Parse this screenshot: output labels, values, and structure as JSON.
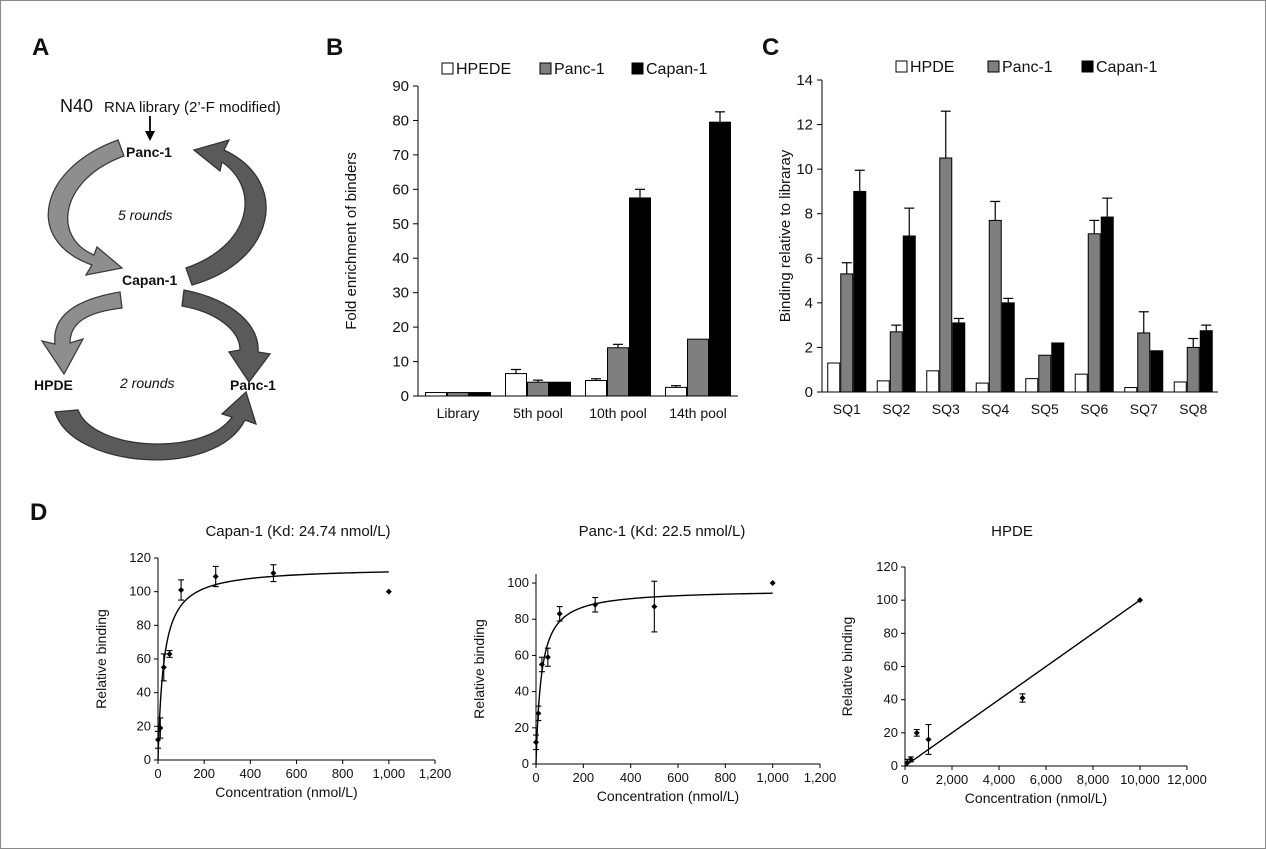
{
  "panels": {
    "a": {
      "letter": "A",
      "n40": "N40",
      "library_text": "RNA library (2’-F modified)",
      "top_cycle": {
        "top_cell": "Panc-1",
        "rounds": "5 rounds",
        "bottom_cell": "Capan-1"
      },
      "bottom_cycle": {
        "left_cell": "HPDE",
        "rounds": "2 rounds",
        "right_cell": "Panc-1"
      }
    },
    "b": {
      "letter": "B"
    },
    "c": {
      "letter": "C"
    },
    "d": {
      "letter": "D"
    }
  },
  "colors": {
    "white_bar": "#ffffff",
    "gray_bar": "#7f7f7f",
    "black_bar": "#000000",
    "arrow_dark": "#5a5a5a",
    "arrow_light": "#8e8e8e"
  },
  "chart_data": [
    {
      "id": "b",
      "type": "bar",
      "title": "",
      "ylabel": "Fold enrichment of binders",
      "xlabel": "",
      "ylim": [
        0,
        90
      ],
      "yticks": [
        "0",
        "10",
        "20",
        "30",
        "40",
        "50",
        "60",
        "70",
        "80",
        "90"
      ],
      "categories": [
        "Library",
        "5th pool",
        "10th pool",
        "14th pool"
      ],
      "series": [
        {
          "name": "HPEDE",
          "values": [
            1.0,
            6.5,
            4.5,
            2.5
          ],
          "errors": [
            0,
            1.2,
            0.5,
            0.5
          ]
        },
        {
          "name": "Panc-1",
          "values": [
            1.0,
            4.0,
            14.0,
            16.5
          ],
          "errors": [
            0,
            0.6,
            1.0,
            0
          ]
        },
        {
          "name": "Capan-1",
          "values": [
            1.0,
            4.0,
            57.5,
            79.5
          ],
          "errors": [
            0,
            0,
            2.5,
            3.0
          ]
        }
      ],
      "legend_position": "top"
    },
    {
      "id": "c",
      "type": "bar",
      "title": "",
      "ylabel": "Binding relative to libraray",
      "xlabel": "",
      "ylim": [
        0,
        14
      ],
      "yticks": [
        "0",
        "2",
        "4",
        "6",
        "8",
        "10",
        "12",
        "14"
      ],
      "categories": [
        "SQ1",
        "SQ2",
        "SQ3",
        "SQ4",
        "SQ5",
        "SQ6",
        "SQ7",
        "SQ8"
      ],
      "series": [
        {
          "name": "HPDE",
          "values": [
            1.3,
            0.5,
            0.95,
            0.4,
            0.6,
            0.8,
            0.2,
            0.45
          ],
          "errors": [
            0,
            0,
            0,
            0,
            0,
            0,
            0,
            0
          ]
        },
        {
          "name": "Panc-1",
          "values": [
            5.3,
            2.7,
            10.5,
            7.7,
            1.65,
            7.1,
            2.65,
            2.0
          ],
          "errors": [
            0.5,
            0.3,
            2.1,
            0.85,
            0,
            0.6,
            0.95,
            0.4
          ]
        },
        {
          "name": "Capan-1",
          "values": [
            9.0,
            7.0,
            3.1,
            4.0,
            2.2,
            7.85,
            1.85,
            2.75
          ],
          "errors": [
            0.95,
            1.25,
            0.2,
            0.2,
            0,
            0.85,
            0,
            0.25
          ]
        }
      ],
      "legend_position": "top"
    },
    {
      "id": "d1",
      "type": "scatter",
      "title": "Capan-1 (Kd: 24.74 nmol/L)",
      "xlabel": "Concentration (nmol/L)",
      "ylabel": "Relative binding",
      "xlim": [
        0,
        1200
      ],
      "ylim": [
        0,
        120
      ],
      "xticks": [
        "0",
        "200",
        "400",
        "600",
        "800",
        "1,000",
        "1,200"
      ],
      "yticks": [
        "0",
        "20",
        "40",
        "60",
        "80",
        "100",
        "120"
      ],
      "points": {
        "x": [
          0,
          10,
          25,
          50,
          100,
          250,
          500,
          1000
        ],
        "y": [
          12,
          19,
          55,
          63,
          101,
          109,
          111,
          100
        ],
        "err": [
          5,
          6,
          8,
          2,
          6,
          6,
          5,
          0
        ]
      },
      "fit": {
        "model": "one_site_binding",
        "bmax": 114.5,
        "kd": 24.74,
        "x_max": 1000
      }
    },
    {
      "id": "d2",
      "type": "scatter",
      "title": "Panc-1 (Kd: 22.5 nmol/L)",
      "xlabel": "Concentration (nmol/L)",
      "ylabel": "Relative binding",
      "xlim": [
        0,
        1200
      ],
      "ylim": [
        0,
        105
      ],
      "xticks": [
        "0",
        "200",
        "400",
        "600",
        "800",
        "1,000",
        "1,200"
      ],
      "yticks": [
        "0",
        "20",
        "40",
        "60",
        "80",
        "100"
      ],
      "points": {
        "x": [
          0,
          10,
          25,
          50,
          100,
          250,
          500,
          1000
        ],
        "y": [
          12,
          28,
          55,
          59,
          83,
          88,
          87,
          100
        ],
        "err": [
          4,
          4,
          4,
          5,
          4,
          4,
          14,
          0
        ]
      },
      "fit": {
        "model": "one_site_binding",
        "bmax": 96.5,
        "kd": 22.5,
        "x_max": 1000
      }
    },
    {
      "id": "d3",
      "type": "scatter",
      "title": "HPDE",
      "xlabel": "Concentration (nmol/L)",
      "ylabel": "Relative binding",
      "xlim": [
        0,
        12000
      ],
      "ylim": [
        0,
        120
      ],
      "xticks": [
        "0",
        "2,000",
        "4,000",
        "6,000",
        "8,000",
        "10,000",
        "12,000"
      ],
      "yticks": [
        "0",
        "20",
        "40",
        "60",
        "80",
        "100",
        "120"
      ],
      "points": {
        "x": [
          100,
          250,
          500,
          1000,
          5000,
          10000
        ],
        "y": [
          2,
          4,
          20,
          16,
          41,
          100
        ],
        "err": [
          2,
          1.5,
          2,
          9,
          2.5,
          0
        ]
      },
      "fit": {
        "model": "linear",
        "slope": 0.01,
        "intercept": 0,
        "x_max": 10000
      }
    }
  ]
}
